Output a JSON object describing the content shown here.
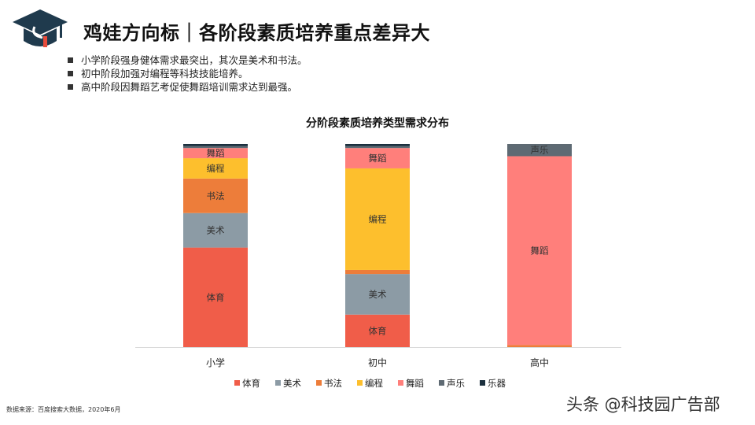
{
  "header": {
    "title": "鸡娃方向标｜各阶段素质培养重点差异大",
    "bullets": [
      "小学阶段强身健体需求最突出，其次是美术和书法。",
      "初中阶段加强对编程等科技技能培养。",
      "高中阶段因舞蹈艺考促使舞蹈培训需求达到最强。"
    ]
  },
  "logo": {
    "icon": "graduation-cap-icon",
    "colors": {
      "cap": "#1f3a4d",
      "accent": "#e74c3c"
    }
  },
  "chart_data": {
    "type": "bar",
    "stacked": true,
    "normalized": true,
    "title": "分阶段素质培养类型需求分布",
    "categories": [
      "小学",
      "初中",
      "高中"
    ],
    "series": [
      {
        "name": "体育",
        "color": "#F05D49",
        "values": [
          49,
          16,
          0
        ]
      },
      {
        "name": "美术",
        "color": "#8C9BA5",
        "values": [
          17,
          20,
          0
        ]
      },
      {
        "name": "书法",
        "color": "#ED7D3A",
        "values": [
          17,
          2,
          1
        ]
      },
      {
        "name": "编程",
        "color": "#FDBF2D",
        "values": [
          10,
          50,
          0
        ]
      },
      {
        "name": "舞蹈",
        "color": "#FF7F7B",
        "values": [
          5,
          10,
          93
        ]
      },
      {
        "name": "声乐",
        "color": "#5E6A73",
        "values": [
          1,
          1,
          6
        ]
      },
      {
        "name": "乐器",
        "color": "#1B2F3E",
        "values": [
          1,
          1,
          0
        ]
      }
    ],
    "legend_position": "bottom",
    "grid": false
  },
  "footer": {
    "source": "数据来源：百度搜索大数据，2020年6月",
    "watermark": "头条 @科技园广告部"
  }
}
